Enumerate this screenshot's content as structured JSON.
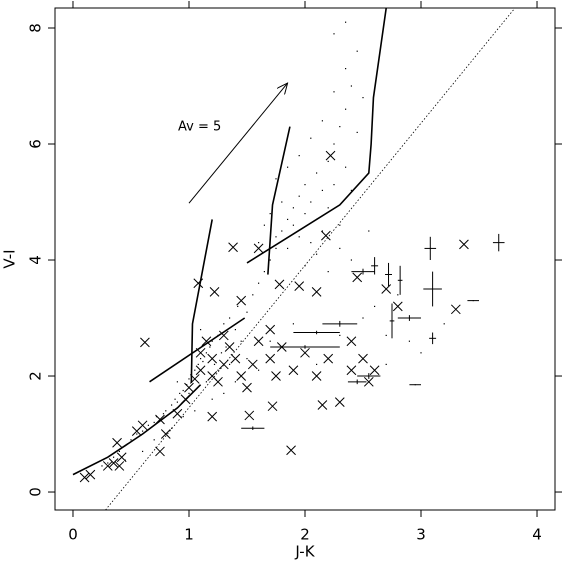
{
  "chart_data": {
    "type": "scatter",
    "x_label": "J-K",
    "y_label": "V-I",
    "xlim": [
      -0.155,
      4.155
    ],
    "ylim": [
      -0.31,
      8.345
    ],
    "xticks": [
      0,
      1,
      2,
      3,
      4
    ],
    "yticks": [
      0,
      2,
      4,
      6,
      8
    ],
    "grid": false,
    "series": [
      {
        "marker": "dot",
        "color": "#000",
        "x": [
          0.25,
          0.3,
          0.35,
          0.4,
          0.45,
          0.5,
          0.55,
          0.6,
          0.65,
          0.7,
          0.72,
          0.78,
          0.8,
          0.85,
          0.88,
          0.9,
          0.92,
          0.95,
          0.98,
          1.0,
          1.02,
          1.05,
          1.08,
          1.1,
          1.12,
          1.15,
          1.18,
          1.2,
          1.22,
          1.25,
          1.28,
          1.3,
          1.32,
          1.35,
          1.4,
          1.42,
          1.45,
          1.5,
          1.55,
          1.6,
          1.65,
          1.7,
          1.75,
          1.8,
          1.85,
          1.9,
          1.95,
          2.0,
          2.05,
          2.1,
          2.15,
          2.2,
          2.25,
          2.3,
          2.35,
          2.4,
          1.6,
          1.65,
          1.7,
          1.75,
          1.8,
          1.85,
          1.9,
          1.95,
          2.0,
          2.05,
          2.1,
          2.15,
          2.2,
          2.25,
          2.3,
          2.35,
          2.4,
          2.45,
          2.5,
          1.75,
          1.85,
          1.95,
          2.05,
          2.15,
          2.25,
          2.35,
          2.45,
          2.0,
          2.1,
          2.2,
          2.3,
          2.4,
          2.25,
          2.35,
          2.55,
          2.6,
          2.7,
          2.8,
          3.0,
          3.2,
          1.4,
          1.5,
          1.3,
          1.2,
          1.05,
          0.95,
          0.85,
          0.7,
          1.6,
          1.7,
          1.9,
          2.1,
          2.3,
          2.5,
          2.7,
          2.9,
          1.15,
          1.25,
          1.35,
          1.0,
          0.9,
          1.1,
          0.6,
          0.45
        ],
        "values": [
          0.45,
          0.5,
          0.6,
          0.7,
          0.8,
          0.9,
          1.0,
          1.05,
          1.15,
          1.2,
          1.3,
          1.35,
          1.4,
          1.5,
          1.6,
          1.55,
          1.7,
          1.75,
          1.85,
          1.95,
          2.0,
          2.1,
          2.2,
          2.3,
          2.25,
          2.4,
          2.5,
          2.6,
          2.2,
          2.7,
          2.4,
          2.9,
          2.5,
          3.0,
          2.8,
          3.2,
          2.6,
          3.1,
          3.4,
          3.6,
          3.8,
          4.0,
          4.2,
          4.5,
          4.7,
          4.9,
          5.1,
          5.3,
          5.0,
          5.5,
          5.2,
          5.7,
          6.0,
          6.3,
          6.6,
          7.0,
          4.3,
          4.6,
          4.8,
          4.4,
          5.0,
          4.2,
          4.6,
          4.4,
          4.8,
          4.3,
          4.7,
          4.5,
          4.9,
          5.3,
          4.6,
          5.6,
          5.2,
          6.2,
          6.8,
          5.4,
          5.6,
          5.8,
          6.1,
          6.4,
          6.9,
          7.3,
          7.6,
          3.9,
          4.1,
          3.8,
          4.2,
          4.0,
          7.9,
          8.1,
          4.5,
          3.2,
          2.7,
          3.4,
          2.4,
          2.9,
          1.9,
          2.3,
          1.7,
          1.6,
          1.4,
          1.3,
          1.1,
          0.9,
          2.1,
          2.6,
          2.9,
          2.2,
          2.7,
          3.0,
          2.2,
          2.6,
          1.9,
          2.1,
          2.2,
          1.7,
          1.9,
          2.8,
          0.7,
          0.55
        ]
      },
      {
        "marker": "cross",
        "color": "#000",
        "x": [
          0.1,
          0.15,
          0.3,
          0.35,
          0.4,
          0.42,
          0.38,
          0.55,
          0.6,
          0.75,
          0.8,
          0.9,
          0.97,
          1.0,
          1.05,
          1.1,
          1.1,
          1.15,
          1.2,
          1.2,
          1.25,
          1.3,
          1.3,
          1.35,
          1.4,
          1.45,
          1.5,
          1.55,
          1.6,
          1.7,
          1.75,
          1.8,
          1.9,
          2.0,
          2.1,
          2.2,
          2.4,
          2.5,
          2.6,
          0.62,
          1.08,
          1.22,
          1.38,
          1.6,
          1.78,
          1.95,
          2.1,
          2.18,
          2.22,
          1.52,
          1.72,
          1.88,
          2.3,
          2.15,
          1.2,
          0.75,
          2.45,
          2.7,
          2.8,
          3.3,
          3.37,
          2.55,
          2.4,
          1.45,
          1.7
        ],
        "values": [
          0.25,
          0.3,
          0.45,
          0.5,
          0.45,
          0.6,
          0.85,
          1.05,
          1.15,
          1.25,
          1.0,
          1.35,
          1.6,
          1.8,
          1.95,
          2.1,
          2.4,
          2.6,
          2.3,
          2.0,
          1.9,
          2.2,
          2.7,
          2.5,
          2.3,
          2.0,
          1.8,
          2.2,
          2.6,
          2.3,
          2.0,
          2.5,
          2.1,
          2.4,
          2.0,
          2.3,
          2.1,
          2.3,
          2.1,
          2.58,
          3.6,
          3.45,
          4.22,
          4.2,
          3.58,
          3.55,
          3.45,
          4.42,
          5.8,
          1.32,
          1.48,
          0.72,
          1.55,
          1.5,
          1.3,
          0.7,
          3.7,
          3.5,
          3.2,
          3.15,
          4.27,
          1.9,
          2.6,
          3.3,
          2.8
        ]
      },
      {
        "marker": "errorbar",
        "color": "#000",
        "x": [
          3.08,
          3.1,
          3.67,
          2.72,
          2.82,
          2.5,
          2.6,
          2.9,
          2.75,
          3.1,
          2.1,
          2.55,
          1.55,
          2.45,
          2.0,
          2.95,
          3.45,
          2.3
        ],
        "values": [
          4.2,
          3.5,
          4.3,
          3.75,
          3.65,
          3.8,
          3.9,
          3.0,
          2.95,
          2.65,
          2.75,
          2.0,
          1.1,
          1.9,
          2.5,
          1.85,
          3.3,
          2.9
        ],
        "xerr": [
          0.05,
          0.08,
          0.05,
          0.03,
          0.02,
          0.1,
          0.03,
          0.1,
          0.02,
          0.03,
          0.2,
          0.1,
          0.1,
          0.08,
          0.3,
          0.05,
          0.05,
          0.15
        ],
        "yerr": [
          0.2,
          0.3,
          0.15,
          0.2,
          0.25,
          0.05,
          0.15,
          0.05,
          0.3,
          0.1,
          0.03,
          0.05,
          0.03,
          0.04,
          0.03,
          0.01,
          0.01,
          0.05
        ]
      }
    ],
    "lines": [
      {
        "style": "solid",
        "x": [
          0,
          0.3,
          0.6,
          0.9,
          1.1
        ],
        "values": [
          0.3,
          0.6,
          1.0,
          1.45,
          1.85
        ]
      },
      {
        "style": "solid",
        "x": [
          0.66,
          1.48
        ],
        "values": [
          1.9,
          3.0
        ]
      },
      {
        "style": "solid",
        "x": [
          1.02,
          1.03,
          1.2
        ],
        "values": [
          1.88,
          2.9,
          4.7
        ]
      },
      {
        "style": "solid",
        "x": [
          1.68,
          1.72,
          1.87
        ],
        "values": [
          3.75,
          4.95,
          6.3
        ]
      },
      {
        "style": "solid",
        "x": [
          1.5,
          1.9,
          2.3,
          2.55,
          2.57,
          2.59,
          2.7
        ],
        "values": [
          3.95,
          4.45,
          4.95,
          5.5,
          6.0,
          6.8,
          8.345
        ]
      },
      {
        "style": "dotted",
        "x": [
          0.28,
          3.81
        ],
        "values": [
          -0.31,
          8.345
        ]
      }
    ],
    "arrow": {
      "x": [
        1.0,
        1.85
      ],
      "values": [
        4.98,
        7.05
      ]
    },
    "annotation": "Av = 5"
  }
}
